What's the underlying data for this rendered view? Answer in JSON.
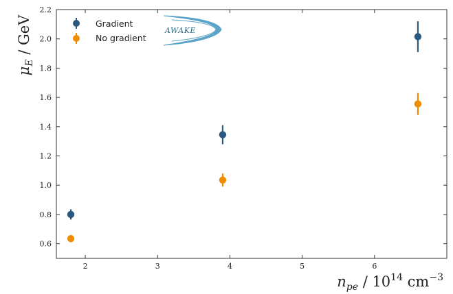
{
  "chart_data": {
    "type": "scatter",
    "xlabel_parts": {
      "var": "n",
      "sub": "pe",
      "slash": " / 10",
      "exp": "14",
      "unit": " cm",
      "unit_exp": "−3"
    },
    "ylabel_parts": {
      "var": "μ",
      "sub": "E",
      "unit": " / GeV"
    },
    "xlim": [
      1.6,
      7.0
    ],
    "ylim": [
      0.5,
      2.2
    ],
    "x_ticks": [
      2,
      3,
      4,
      5,
      6
    ],
    "y_ticks": [
      0.6,
      0.8,
      1.0,
      1.2,
      1.4,
      1.6,
      1.8,
      2.0,
      2.2
    ],
    "x_tick_labels": [
      "2",
      "3",
      "4",
      "5",
      "6"
    ],
    "y_tick_labels": [
      "0.6",
      "0.8",
      "1.0",
      "1.2",
      "1.4",
      "1.6",
      "1.8",
      "2.0",
      "2.2"
    ],
    "legend_position": "top-left",
    "grid": false,
    "series": [
      {
        "name": "Gradient",
        "color": "#2a587f",
        "points": [
          {
            "x": 1.8,
            "y": 0.8,
            "err": 0.035
          },
          {
            "x": 3.9,
            "y": 1.345,
            "err": 0.065
          },
          {
            "x": 6.6,
            "y": 2.015,
            "err": 0.105
          }
        ]
      },
      {
        "name": "No gradient",
        "color": "#f08c00",
        "points": [
          {
            "x": 1.8,
            "y": 0.635,
            "err": 0.025
          },
          {
            "x": 3.9,
            "y": 1.035,
            "err": 0.045
          },
          {
            "x": 6.6,
            "y": 1.555,
            "err": 0.075
          }
        ]
      }
    ]
  },
  "logo": {
    "text": "AWAKE",
    "color": "#5aa4c8"
  }
}
